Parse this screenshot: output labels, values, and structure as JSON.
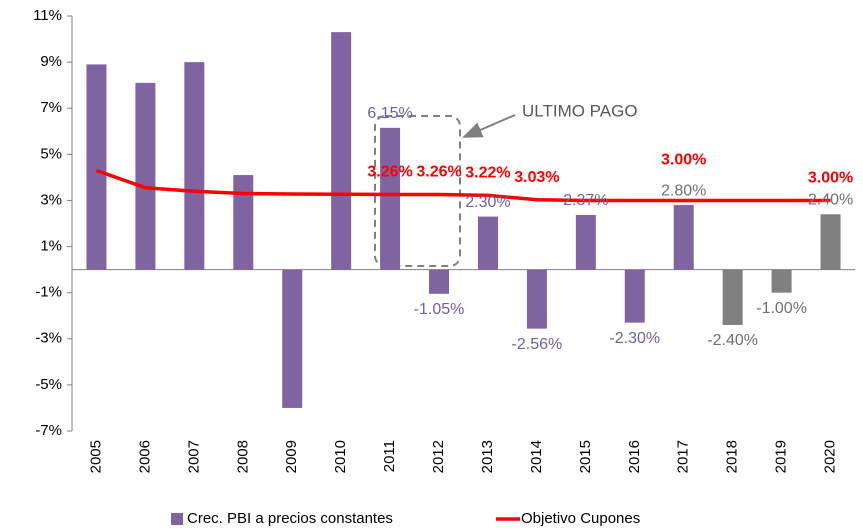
{
  "chart_data": {
    "type": "bar",
    "categories": [
      "2005",
      "2006",
      "2007",
      "2008",
      "2009",
      "2010",
      "2011",
      "2012",
      "2013",
      "2014",
      "2015",
      "2016",
      "2017",
      "2018",
      "2019",
      "2020"
    ],
    "series": [
      {
        "name": "Crec. PBI a precios constantes",
        "type": "bar",
        "color": "#8064a2",
        "colors": [
          "#8064a2",
          "#8064a2",
          "#8064a2",
          "#8064a2",
          "#8064a2",
          "#8064a2",
          "#8064a2",
          "#8064a2",
          "#8064a2",
          "#8064a2",
          "#8064a2",
          "#8064a2",
          "#8064a2",
          "#808080",
          "#808080",
          "#808080"
        ],
        "values": [
          8.9,
          8.1,
          9.0,
          4.1,
          -6.0,
          10.3,
          6.15,
          -1.05,
          2.3,
          -2.56,
          2.37,
          -2.3,
          2.8,
          -2.4,
          -1.0,
          2.4
        ],
        "value_labels": [
          null,
          null,
          null,
          null,
          null,
          null,
          "6.15%",
          "-1.05%",
          "2.30%",
          "-2.56%",
          "2.37%",
          "-2.30%",
          "2.80%",
          "-2.40%",
          "-1.00%",
          "2.40%"
        ],
        "label_colors": [
          "#7060a0",
          "#7060a0",
          "#7060a0",
          "#7060a0",
          "#7060a0",
          "#7060a0",
          "#7060a0",
          "#7060a0",
          "#7060a0",
          "#7060a0",
          "#7060a0",
          "#7060a0",
          "#707070",
          "#707070",
          "#707070",
          "#707070"
        ]
      },
      {
        "name": "Objetivo Cupones",
        "type": "line",
        "color": "#ff0000",
        "values": [
          4.3,
          3.55,
          3.4,
          3.3,
          3.28,
          3.27,
          3.26,
          3.26,
          3.22,
          3.03,
          3.0,
          3.0,
          3.0,
          3.0,
          3.0,
          3.0
        ],
        "value_labels": [
          null,
          null,
          null,
          null,
          null,
          null,
          "3.26%",
          "3.26%",
          "3.22%",
          "3.03%",
          null,
          null,
          "3.00%",
          null,
          null,
          "3.00%"
        ]
      }
    ],
    "ylim": [
      -7,
      11
    ],
    "yticks": [
      {
        "value": 11,
        "label": "11%"
      },
      {
        "value": 9,
        "label": "9%"
      },
      {
        "value": 7,
        "label": "7%"
      },
      {
        "value": 5,
        "label": "5%"
      },
      {
        "value": 3,
        "label": "3%"
      },
      {
        "value": 1,
        "label": "1%"
      },
      {
        "value": -1,
        "label": "-1%"
      },
      {
        "value": -3,
        "label": "-3%"
      },
      {
        "value": -5,
        "label": "-5%"
      },
      {
        "value": -7,
        "label": "-7%"
      }
    ],
    "annotation": "ULTIMO PAGO",
    "grid": false,
    "legend": "bottom"
  }
}
